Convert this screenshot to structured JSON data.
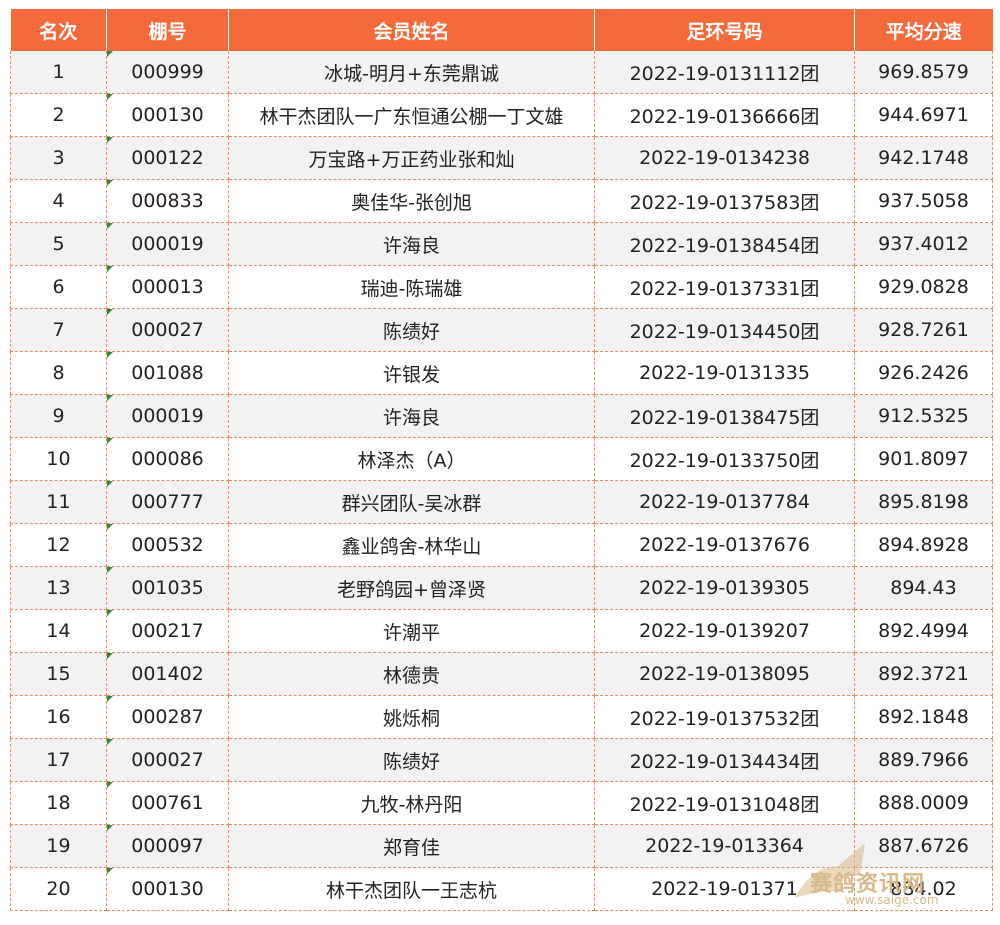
{
  "table": {
    "headers": [
      "名次",
      "棚号",
      "会员姓名",
      "足环号码",
      "平均分速"
    ],
    "rows": [
      [
        "1",
        "000999",
        "冰城-明月+东莞鼎诚",
        "2022-19-0131112团",
        "969.8579"
      ],
      [
        "2",
        "000130",
        "林干杰团队一广东恒通公棚一丁文雄",
        "2022-19-0136666团",
        "944.6971"
      ],
      [
        "3",
        "000122",
        "万宝路+万正药业张和灿",
        "2022-19-0134238",
        "942.1748"
      ],
      [
        "4",
        "000833",
        "奥佳华-张创旭",
        "2022-19-0137583团",
        "937.5058"
      ],
      [
        "5",
        "000019",
        "许海良",
        "2022-19-0138454团",
        "937.4012"
      ],
      [
        "6",
        "000013",
        "瑞迪-陈瑞雄",
        "2022-19-0137331团",
        "929.0828"
      ],
      [
        "7",
        "000027",
        "陈绩好",
        "2022-19-0134450团",
        "928.7261"
      ],
      [
        "8",
        "001088",
        "许银发",
        "2022-19-0131335",
        "926.2426"
      ],
      [
        "9",
        "000019",
        "许海良",
        "2022-19-0138475团",
        "912.5325"
      ],
      [
        "10",
        "000086",
        "林泽杰（A）",
        "2022-19-0133750团",
        "901.8097"
      ],
      [
        "11",
        "000777",
        "群兴团队-吴冰群",
        "2022-19-0137784",
        "895.8198"
      ],
      [
        "12",
        "000532",
        "鑫业鸽舍-林华山",
        "2022-19-0137676",
        "894.8928"
      ],
      [
        "13",
        "001035",
        "老野鸽园+曾泽贤",
        "2022-19-0139305",
        "894.43"
      ],
      [
        "14",
        "000217",
        "许潮平",
        "2022-19-0139207",
        "892.4994"
      ],
      [
        "15",
        "001402",
        "林德贵",
        "2022-19-0138095",
        "892.3721"
      ],
      [
        "16",
        "000287",
        "姚烁桐",
        "2022-19-0137532团",
        "892.1848"
      ],
      [
        "17",
        "000027",
        "陈绩好",
        "2022-19-0134434团",
        "889.7966"
      ],
      [
        "18",
        "000761",
        "九牧-林丹阳",
        "2022-19-0131048团",
        "888.0009"
      ],
      [
        "19",
        "000097",
        "郑育佳",
        "2022-19-013364",
        "887.6726"
      ],
      [
        "20",
        "000130",
        "林干杰团队一王志杭",
        "2022-19-01371",
        "884.02"
      ]
    ]
  },
  "watermark": {
    "text": "赛鸽资讯网",
    "url": "www.saige.com"
  },
  "colors": {
    "header_bg": "#f46a3a",
    "row_alt_bg": "#f2f2f2",
    "grid_line": "#f08a5e",
    "watermark": "#d7b98a"
  }
}
